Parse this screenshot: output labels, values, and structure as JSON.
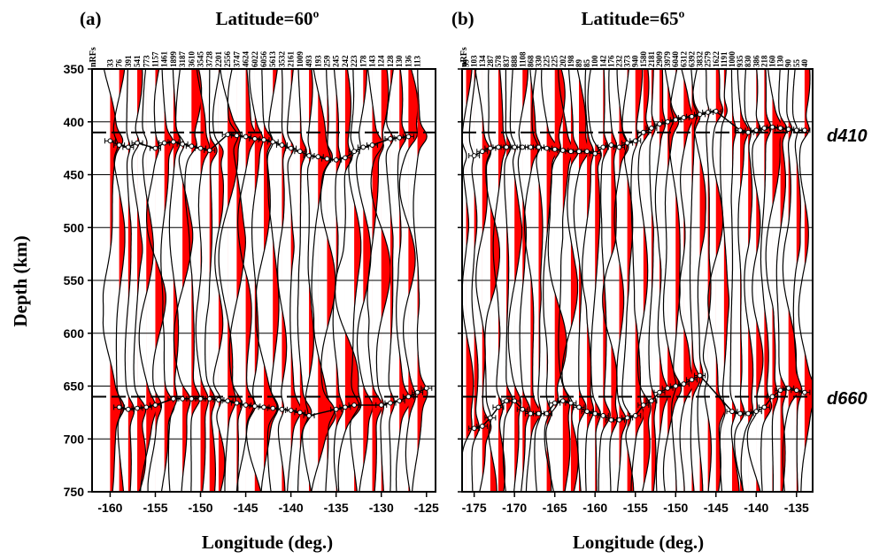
{
  "figure": {
    "y_axis_label": "Depth (km)",
    "depth_ticks": [
      350,
      400,
      450,
      500,
      550,
      600,
      650,
      700,
      750
    ],
    "discontinuity_labels": {
      "d410": "d410",
      "d660": "d660"
    },
    "colors": {
      "fill": "#ff0000",
      "trace": "#000000",
      "background": "#ffffff"
    }
  },
  "chart_data": [
    {
      "type": "line",
      "panel_label": "(a)",
      "title": "Latitude=60º",
      "xlabel": "Longitude (deg.)",
      "ylabel": "Depth (km)",
      "xlim": [
        -162,
        -124
      ],
      "ylim": [
        750,
        350
      ],
      "x_ticks": [
        -160,
        -155,
        -150,
        -145,
        -140,
        -135,
        -130,
        -125
      ],
      "grid": true,
      "count_header": "nRFs",
      "traces_start_lon": -160,
      "trace_spacing_deg": 1,
      "nrfs": [
        "33",
        "76",
        "391",
        "541",
        "773",
        "1157",
        "1461",
        "1899",
        "3187",
        "3610",
        "3545",
        "3728",
        "2201",
        "2556",
        "3747",
        "4624",
        "6022",
        "6056",
        "5613",
        "3532",
        "2161",
        "1009",
        "493",
        "193",
        "259",
        "245",
        "242",
        "223",
        "178",
        "143",
        "124",
        "128",
        "130",
        "136",
        "113"
      ],
      "d410_reference_depth": 410,
      "d660_reference_depth": 660,
      "d410_picks": [
        {
          "lon": -160,
          "depth": 418
        },
        {
          "lon": -159,
          "depth": 422
        },
        {
          "lon": -158,
          "depth": 424
        },
        {
          "lon": -157,
          "depth": 420
        },
        {
          "lon": -155,
          "depth": 425
        },
        {
          "lon": -154,
          "depth": 420
        },
        {
          "lon": -153,
          "depth": 419
        },
        {
          "lon": -152,
          "depth": 421
        },
        {
          "lon": -151,
          "depth": 423
        },
        {
          "lon": -150,
          "depth": 425
        },
        {
          "lon": -149,
          "depth": 427
        },
        {
          "lon": -147,
          "depth": 412
        },
        {
          "lon": -146,
          "depth": 413
        },
        {
          "lon": -145,
          "depth": 414
        },
        {
          "lon": -144,
          "depth": 416
        },
        {
          "lon": -143,
          "depth": 417
        },
        {
          "lon": -142,
          "depth": 419
        },
        {
          "lon": -141,
          "depth": 422
        },
        {
          "lon": -140,
          "depth": 425
        },
        {
          "lon": -139,
          "depth": 428
        },
        {
          "lon": -138,
          "depth": 432
        },
        {
          "lon": -137,
          "depth": 433
        },
        {
          "lon": -136,
          "depth": 435
        },
        {
          "lon": -135,
          "depth": 436
        },
        {
          "lon": -134,
          "depth": 434
        },
        {
          "lon": -133,
          "depth": 428
        },
        {
          "lon": -132,
          "depth": 424
        },
        {
          "lon": -131,
          "depth": 422
        },
        {
          "lon": -129,
          "depth": 416
        },
        {
          "lon": -128,
          "depth": 415
        },
        {
          "lon": -127,
          "depth": 414
        }
      ],
      "d660_picks": [
        {
          "lon": -159,
          "depth": 670
        },
        {
          "lon": -158,
          "depth": 672
        },
        {
          "lon": -157,
          "depth": 671
        },
        {
          "lon": -156,
          "depth": 670
        },
        {
          "lon": -155,
          "depth": 668
        },
        {
          "lon": -153,
          "depth": 662
        },
        {
          "lon": -152,
          "depth": 662
        },
        {
          "lon": -151,
          "depth": 662
        },
        {
          "lon": -150,
          "depth": 662
        },
        {
          "lon": -149,
          "depth": 662
        },
        {
          "lon": -148,
          "depth": 663
        },
        {
          "lon": -147,
          "depth": 664
        },
        {
          "lon": -146,
          "depth": 666
        },
        {
          "lon": -145,
          "depth": 668
        },
        {
          "lon": -144,
          "depth": 669
        },
        {
          "lon": -143,
          "depth": 670
        },
        {
          "lon": -142,
          "depth": 671
        },
        {
          "lon": -141,
          "depth": 672
        },
        {
          "lon": -140,
          "depth": 673
        },
        {
          "lon": -139,
          "depth": 675
        },
        {
          "lon": -138,
          "depth": 678
        },
        {
          "lon": -135,
          "depth": 672
        },
        {
          "lon": -134,
          "depth": 670
        },
        {
          "lon": -133,
          "depth": 668
        },
        {
          "lon": -130,
          "depth": 668
        },
        {
          "lon": -129,
          "depth": 666
        },
        {
          "lon": -128,
          "depth": 664
        },
        {
          "lon": -127,
          "depth": 660
        },
        {
          "lon": -126,
          "depth": 656
        },
        {
          "lon": -125,
          "depth": 652
        }
      ]
    },
    {
      "type": "line",
      "panel_label": "(b)",
      "title": "Latitude=65º",
      "xlabel": "Longitude (deg.)",
      "ylabel": "",
      "xlim": [
        -176.5,
        -133
      ],
      "ylim": [
        750,
        350
      ],
      "x_ticks": [
        -175,
        -170,
        -165,
        -160,
        -155,
        -150,
        -145,
        -140,
        -135
      ],
      "grid": true,
      "count_header": "nRFs",
      "traces_start_lon": -176,
      "trace_spacing_deg": 1,
      "nrfs": [
        "39",
        "103",
        "134",
        "287",
        "578",
        "837",
        "888",
        "1108",
        "868",
        "330",
        "225",
        "225",
        "202",
        "198",
        "89",
        "85",
        "100",
        "142",
        "176",
        "232",
        "373",
        "940",
        "1580",
        "2181",
        "2909",
        "3979",
        "6040",
        "6312",
        "6392",
        "3832",
        "2579",
        "1622",
        "1191",
        "1000",
        "935",
        "830",
        "386",
        "218",
        "160",
        "130",
        "90",
        "55",
        "40"
      ],
      "d410_reference_depth": 410,
      "d660_reference_depth": 660,
      "d410_picks": [
        {
          "lon": -175,
          "depth": 432
        },
        {
          "lon": -174,
          "depth": 428
        },
        {
          "lon": -173,
          "depth": 425
        },
        {
          "lon": -172,
          "depth": 424
        },
        {
          "lon": -171,
          "depth": 424
        },
        {
          "lon": -170,
          "depth": 424
        },
        {
          "lon": -169,
          "depth": 424
        },
        {
          "lon": -168,
          "depth": 424
        },
        {
          "lon": -167,
          "depth": 424
        },
        {
          "lon": -166,
          "depth": 425
        },
        {
          "lon": -165,
          "depth": 426
        },
        {
          "lon": -164,
          "depth": 427
        },
        {
          "lon": -163,
          "depth": 428
        },
        {
          "lon": -162,
          "depth": 428
        },
        {
          "lon": -161,
          "depth": 428
        },
        {
          "lon": -160,
          "depth": 430
        },
        {
          "lon": -159,
          "depth": 424
        },
        {
          "lon": -158,
          "depth": 422
        },
        {
          "lon": -157,
          "depth": 424
        },
        {
          "lon": -156,
          "depth": 420
        },
        {
          "lon": -155,
          "depth": 418
        },
        {
          "lon": -154,
          "depth": 410
        },
        {
          "lon": -153,
          "depth": 406
        },
        {
          "lon": -152,
          "depth": 402
        },
        {
          "lon": -151,
          "depth": 400
        },
        {
          "lon": -150,
          "depth": 398
        },
        {
          "lon": -149,
          "depth": 396
        },
        {
          "lon": -148,
          "depth": 395
        },
        {
          "lon": -147,
          "depth": 393
        },
        {
          "lon": -146,
          "depth": 391
        },
        {
          "lon": -145,
          "depth": 390
        },
        {
          "lon": -142,
          "depth": 408
        },
        {
          "lon": -141,
          "depth": 410
        },
        {
          "lon": -140,
          "depth": 408
        },
        {
          "lon": -139,
          "depth": 406
        },
        {
          "lon": -138,
          "depth": 405
        },
        {
          "lon": -137,
          "depth": 406
        },
        {
          "lon": -136,
          "depth": 407
        },
        {
          "lon": -135,
          "depth": 408
        },
        {
          "lon": -134,
          "depth": 408
        }
      ],
      "d660_picks": [
        {
          "lon": -175,
          "depth": 690
        },
        {
          "lon": -174,
          "depth": 688
        },
        {
          "lon": -173,
          "depth": 680
        },
        {
          "lon": -172,
          "depth": 670
        },
        {
          "lon": -171,
          "depth": 664
        },
        {
          "lon": -170,
          "depth": 664
        },
        {
          "lon": -169,
          "depth": 672
        },
        {
          "lon": -168,
          "depth": 676
        },
        {
          "lon": -167,
          "depth": 676
        },
        {
          "lon": -166,
          "depth": 676
        },
        {
          "lon": -165,
          "depth": 666
        },
        {
          "lon": -164,
          "depth": 664
        },
        {
          "lon": -163,
          "depth": 666
        },
        {
          "lon": -162,
          "depth": 670
        },
        {
          "lon": -161,
          "depth": 674
        },
        {
          "lon": -160,
          "depth": 676
        },
        {
          "lon": -159,
          "depth": 678
        },
        {
          "lon": -158,
          "depth": 682
        },
        {
          "lon": -157,
          "depth": 682
        },
        {
          "lon": -156,
          "depth": 680
        },
        {
          "lon": -155,
          "depth": 678
        },
        {
          "lon": -154,
          "depth": 668
        },
        {
          "lon": -153,
          "depth": 664
        },
        {
          "lon": -152,
          "depth": 656
        },
        {
          "lon": -151,
          "depth": 652
        },
        {
          "lon": -150,
          "depth": 650
        },
        {
          "lon": -149,
          "depth": 648
        },
        {
          "lon": -148,
          "depth": 644
        },
        {
          "lon": -147,
          "depth": 640
        },
        {
          "lon": -143,
          "depth": 674
        },
        {
          "lon": -142,
          "depth": 676
        },
        {
          "lon": -141,
          "depth": 676
        },
        {
          "lon": -140,
          "depth": 674
        },
        {
          "lon": -139,
          "depth": 670
        },
        {
          "lon": -138,
          "depth": 660
        },
        {
          "lon": -137,
          "depth": 654
        },
        {
          "lon": -136,
          "depth": 652
        },
        {
          "lon": -135,
          "depth": 654
        },
        {
          "lon": -134,
          "depth": 656
        }
      ]
    }
  ]
}
